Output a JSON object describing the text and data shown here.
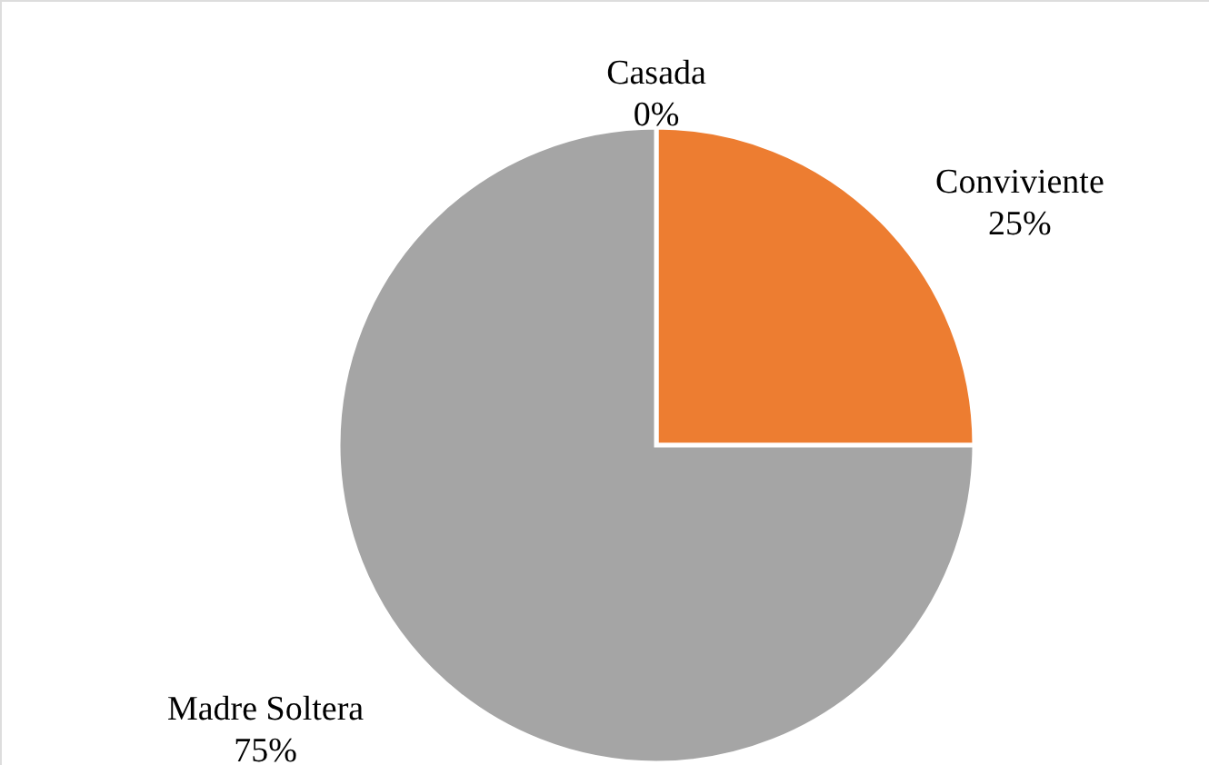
{
  "chart_data": {
    "type": "pie",
    "categories": [
      "Casada",
      "Conviviente",
      "Madre Soltera"
    ],
    "values": [
      0,
      25,
      75
    ],
    "colors": [
      "#4472c4",
      "#ed7d31",
      "#a5a5a5"
    ],
    "value_labels": [
      "0%",
      "25%",
      "75%"
    ]
  }
}
